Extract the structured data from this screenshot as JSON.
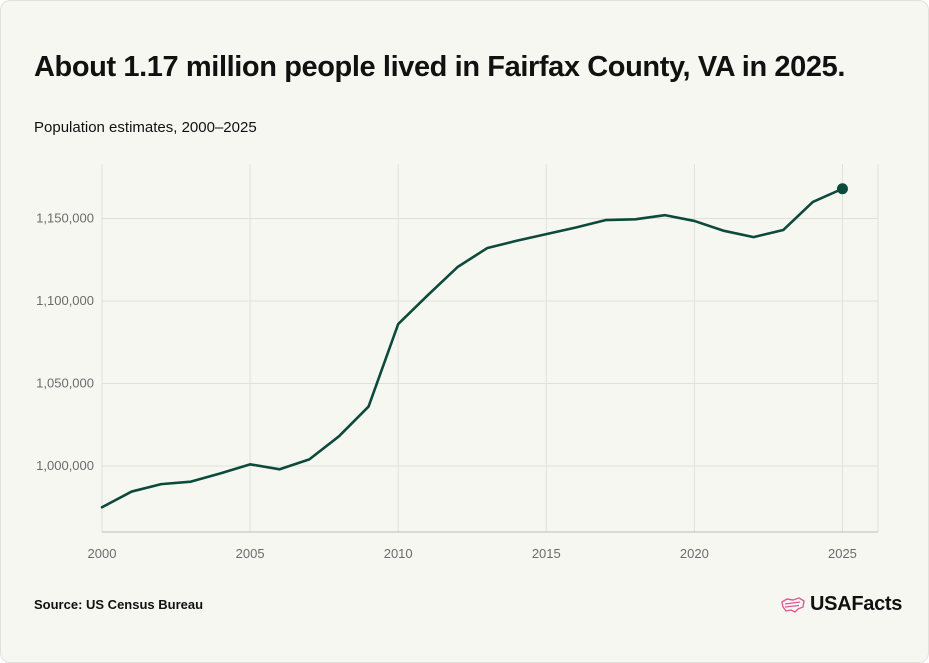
{
  "header": {
    "title": "About 1.17 million people lived in Fairfax County, VA in 2025.",
    "subtitle": "Population estimates, 2000–2025"
  },
  "footer": {
    "source": "Source: US Census Bureau",
    "brand": "USAFacts",
    "brand_icon": "us-flag-map-icon",
    "brand_icon_color": "#e05a9a"
  },
  "colors": {
    "line": "#0d4a3c",
    "grid": "#e1e1dc",
    "tick_text": "#6b6b6b"
  },
  "chart_data": {
    "type": "line",
    "title": "About 1.17 million people lived in Fairfax County, VA in 2025.",
    "subtitle": "Population estimates, 2000–2025",
    "xlabel": "",
    "ylabel": "",
    "x": [
      2000,
      2001,
      2002,
      2003,
      2004,
      2005,
      2006,
      2007,
      2008,
      2009,
      2010,
      2011,
      2012,
      2013,
      2014,
      2015,
      2016,
      2017,
      2018,
      2019,
      2020,
      2021,
      2022,
      2023,
      2024,
      2025
    ],
    "series": [
      {
        "values": [
          975000,
          984500,
          989000,
          990500,
          995500,
          1001000,
          998000,
          1004000,
          1018000,
          1036000,
          1086000,
          1103500,
          1120500,
          1132000,
          1136500,
          1140500,
          1144500,
          1149000,
          1149500,
          1152000,
          1148500,
          1142500,
          1138700,
          1143000,
          1160000,
          1168000
        ]
      }
    ],
    "xlim": [
      2000,
      2026.2
    ],
    "ylim": [
      960000,
      1183000
    ],
    "xticks": [
      2000,
      2005,
      2010,
      2015,
      2020,
      2025
    ],
    "xtick_labels": [
      "2000",
      "2005",
      "2010",
      "2015",
      "2020",
      "2025"
    ],
    "yticks": [
      1000000,
      1050000,
      1100000,
      1150000
    ],
    "ytick_labels": [
      "1,000,000",
      "1,050,000",
      "1,100,000",
      "1,150,000"
    ],
    "grid": true,
    "legend": "none",
    "highlight_last_point": true
  }
}
